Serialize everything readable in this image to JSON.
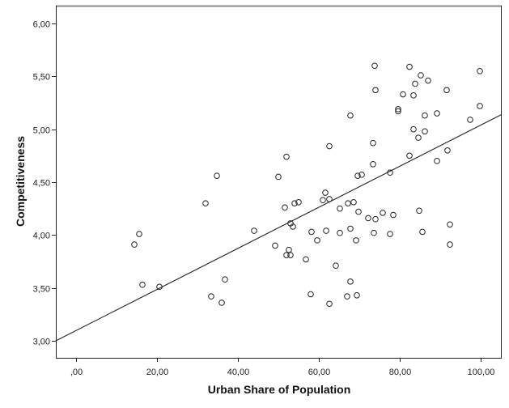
{
  "chart_data": {
    "type": "scatter",
    "title": "",
    "xlabel": "Urban Share of Population",
    "ylabel": "Competitiveness",
    "xlim": [
      -5,
      105.2
    ],
    "ylim": [
      2.83,
      6.16
    ],
    "x_ticks": [
      0,
      20,
      40,
      60,
      80,
      100
    ],
    "x_tick_labels": [
      ",00",
      "20,00",
      "40,00",
      "60,00",
      "80,00",
      "100,00"
    ],
    "y_ticks": [
      3.0,
      3.5,
      4.0,
      4.5,
      5.0,
      5.5,
      6.0
    ],
    "y_tick_labels": [
      "3,00",
      "3,50",
      "4,00",
      "4,50",
      "5,00",
      "5,50",
      "6,00"
    ],
    "grid": false,
    "legend": null,
    "marker": "open-circle",
    "fit_line": {
      "type": "linear",
      "x": [
        -5,
        105.2
      ],
      "y": [
        3.0,
        5.14
      ]
    },
    "points": [
      [
        15.6,
        4.01
      ],
      [
        14.4,
        3.91
      ],
      [
        16.4,
        3.53
      ],
      [
        20.6,
        3.51
      ],
      [
        32.0,
        4.3
      ],
      [
        34.8,
        4.56
      ],
      [
        36.8,
        3.58
      ],
      [
        36.0,
        3.36
      ],
      [
        33.4,
        3.42
      ],
      [
        44.0,
        4.04
      ],
      [
        49.2,
        3.9
      ],
      [
        50.0,
        4.55
      ],
      [
        52.0,
        4.74
      ],
      [
        51.6,
        4.26
      ],
      [
        54.0,
        4.3
      ],
      [
        55.0,
        4.31
      ],
      [
        53.0,
        4.11
      ],
      [
        53.6,
        4.08
      ],
      [
        52.6,
        3.86
      ],
      [
        52.0,
        3.81
      ],
      [
        53.0,
        3.81
      ],
      [
        56.8,
        3.77
      ],
      [
        58.2,
        4.03
      ],
      [
        59.6,
        3.95
      ],
      [
        58.0,
        3.44
      ],
      [
        61.6,
        4.4
      ],
      [
        61.0,
        4.33
      ],
      [
        62.6,
        4.34
      ],
      [
        61.8,
        4.04
      ],
      [
        62.6,
        4.84
      ],
      [
        62.6,
        3.35
      ],
      [
        64.2,
        3.71
      ],
      [
        65.2,
        4.25
      ],
      [
        65.2,
        4.02
      ],
      [
        67.2,
        4.3
      ],
      [
        67.8,
        5.13
      ],
      [
        67.8,
        4.06
      ],
      [
        67.8,
        3.56
      ],
      [
        67.0,
        3.42
      ],
      [
        68.6,
        4.31
      ],
      [
        69.2,
        3.95
      ],
      [
        69.4,
        3.43
      ],
      [
        69.6,
        4.56
      ],
      [
        70.6,
        4.57
      ],
      [
        69.8,
        4.22
      ],
      [
        72.2,
        4.16
      ],
      [
        73.4,
        4.87
      ],
      [
        73.4,
        4.67
      ],
      [
        73.6,
        4.02
      ],
      [
        73.8,
        5.6
      ],
      [
        74.0,
        5.37
      ],
      [
        74.0,
        4.15
      ],
      [
        75.8,
        4.21
      ],
      [
        77.6,
        4.59
      ],
      [
        77.6,
        4.01
      ],
      [
        78.4,
        4.19
      ],
      [
        79.6,
        5.19
      ],
      [
        79.6,
        5.17
      ],
      [
        80.8,
        5.33
      ],
      [
        82.4,
        5.59
      ],
      [
        82.4,
        4.75
      ],
      [
        83.4,
        5.32
      ],
      [
        83.4,
        5.0
      ],
      [
        83.8,
        5.43
      ],
      [
        84.6,
        4.92
      ],
      [
        84.8,
        4.23
      ],
      [
        85.2,
        5.51
      ],
      [
        85.6,
        4.03
      ],
      [
        86.2,
        5.13
      ],
      [
        86.2,
        4.98
      ],
      [
        87.0,
        5.46
      ],
      [
        89.2,
        5.15
      ],
      [
        89.2,
        4.7
      ],
      [
        91.6,
        5.37
      ],
      [
        91.8,
        4.8
      ],
      [
        92.4,
        4.1
      ],
      [
        92.4,
        3.91
      ],
      [
        97.4,
        5.09
      ],
      [
        99.8,
        5.55
      ],
      [
        99.8,
        5.22
      ]
    ]
  }
}
